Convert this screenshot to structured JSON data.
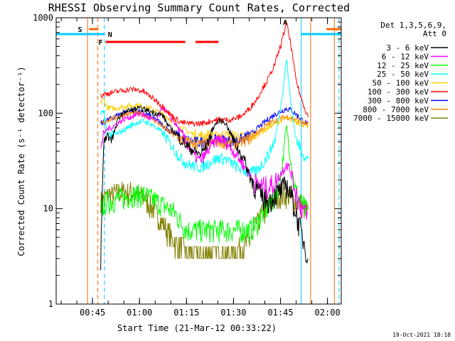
{
  "chart_data": {
    "type": "line",
    "title": "RHESSI Observing Summary Count Rates, Corrected",
    "xlabel": "Start Time (21-Mar-12 00:33:22)",
    "ylabel": "Corrected Count Rate (s⁻¹ detector⁻¹)",
    "yscale": "log",
    "ylim": [
      1,
      1000
    ],
    "xlim_minutes": [
      0,
      91
    ],
    "x_start": "00:33:22",
    "x_ticks": [
      {
        "label": "00:45",
        "t": 11.6
      },
      {
        "label": "01:00",
        "t": 26.6
      },
      {
        "label": "01:15",
        "t": 41.6
      },
      {
        "label": "01:30",
        "t": 56.6
      },
      {
        "label": "01:45",
        "t": 71.6
      },
      {
        "label": "02:00",
        "t": 86.6
      }
    ],
    "y_ticks": [
      {
        "label": "1",
        "v": 1
      },
      {
        "label": "10",
        "v": 10
      },
      {
        "label": "100",
        "v": 100
      },
      {
        "label": "1000",
        "v": 1000
      }
    ],
    "legend_header": [
      "Det 1,3,5,6,9,",
      "Att 0"
    ],
    "series": [
      {
        "name": "3 - 6 keV",
        "color": "#000000",
        "x": [
          14.2,
          15.2,
          16.2,
          18,
          20,
          22,
          24,
          26,
          28,
          30,
          32,
          34,
          36,
          38,
          40,
          42,
          44,
          46,
          48,
          50,
          52,
          54,
          56,
          58,
          60,
          62,
          64,
          66,
          68,
          70,
          72,
          73.5,
          75,
          76.5,
          78,
          79.5,
          80.6
        ],
        "values": [
          3,
          52,
          58,
          55,
          90,
          105,
          108,
          112,
          110,
          104,
          100,
          95,
          72,
          62,
          52,
          45,
          40,
          37,
          45,
          70,
          85,
          80,
          58,
          42,
          33,
          21,
          16,
          13,
          12,
          14,
          16,
          18,
          14,
          9,
          6,
          4,
          3
        ]
      },
      {
        "name": "6 - 12 keV",
        "color": "#ff00ff",
        "x": [
          14.2,
          15.2,
          16.2,
          18,
          20,
          22,
          24,
          26,
          28,
          30,
          32,
          34,
          36,
          38,
          40,
          42,
          44,
          46,
          48,
          50,
          52,
          54,
          56,
          58,
          60,
          62,
          64,
          66,
          68,
          70,
          72,
          73.5,
          75,
          76.5,
          78,
          79.5,
          80.6
        ],
        "values": [
          45,
          60,
          68,
          72,
          80,
          88,
          92,
          98,
          96,
          88,
          82,
          118,
          95,
          78,
          62,
          46,
          36,
          32,
          38,
          48,
          55,
          50,
          42,
          35,
          28,
          22,
          18,
          17,
          17,
          19,
          24,
          30,
          24,
          15,
          11,
          9,
          8
        ]
      },
      {
        "name": "12 - 25 keV",
        "color": "#00ff00",
        "x": [
          14.2,
          15.2,
          16.2,
          18,
          20,
          22,
          24,
          26,
          28,
          30,
          32,
          34,
          36,
          38,
          40,
          42,
          44,
          46,
          48,
          50,
          52,
          54,
          56,
          58,
          60,
          62,
          64,
          66,
          68,
          70,
          72,
          73.5,
          75,
          76.5,
          78,
          79.5,
          80.6
        ],
        "values": [
          10,
          11,
          12,
          12,
          13,
          13,
          14,
          14,
          14,
          13,
          12,
          11,
          10,
          9,
          7,
          6,
          6,
          6,
          6,
          6,
          6,
          6,
          6,
          6,
          6,
          6,
          7,
          9,
          11,
          14,
          25,
          75,
          30,
          15,
          12,
          10,
          9
        ]
      },
      {
        "name": "25 - 50 keV",
        "color": "#00ffff",
        "x": [
          14.2,
          15.2,
          16.2,
          18,
          20,
          22,
          24,
          26,
          28,
          30,
          32,
          34,
          36,
          38,
          40,
          42,
          44,
          46,
          48,
          50,
          52,
          54,
          56,
          58,
          60,
          62,
          64,
          66,
          68,
          70,
          72,
          73.5,
          75,
          76.5,
          78,
          79.5,
          80.6
        ],
        "values": [
          95,
          110,
          62,
          58,
          62,
          68,
          75,
          80,
          82,
          78,
          70,
          62,
          50,
          40,
          33,
          29,
          28,
          27,
          29,
          32,
          34,
          33,
          30,
          27,
          25,
          24,
          25,
          30,
          38,
          55,
          140,
          380,
          120,
          55,
          42,
          35,
          32
        ]
      },
      {
        "name": "50 - 100 keV",
        "color": "#ffcc00",
        "x": [
          14.2,
          15.2,
          16.2,
          18,
          20,
          22,
          24,
          26,
          28,
          30,
          32,
          34,
          36,
          38,
          40,
          42,
          44,
          46,
          48,
          50,
          52,
          54,
          56,
          58,
          60,
          62,
          64,
          66,
          68,
          70,
          72,
          73.5,
          75,
          76.5,
          78,
          79.5,
          80.6
        ],
        "values": [
          130,
          140,
          115,
          112,
          115,
          118,
          120,
          122,
          118,
          112,
          105,
          98,
          88,
          78,
          70,
          64,
          60,
          58,
          59,
          60,
          60,
          59,
          58,
          57,
          56,
          57,
          60,
          65,
          72,
          78,
          85,
          88,
          86,
          82,
          78,
          75,
          72
        ]
      },
      {
        "name": "100 - 300 keV",
        "color": "#ff0000",
        "x": [
          14.2,
          15.2,
          16.2,
          18,
          20,
          22,
          24,
          26,
          28,
          30,
          32,
          34,
          36,
          38,
          40,
          42,
          44,
          46,
          48,
          50,
          52,
          54,
          56,
          58,
          60,
          62,
          64,
          66,
          68,
          70,
          72,
          73.5,
          75,
          76.5,
          78,
          79.5,
          80.6
        ],
        "values": [
          150,
          158,
          160,
          165,
          170,
          175,
          178,
          176,
          168,
          150,
          135,
          118,
          100,
          88,
          80,
          78,
          78,
          78,
          80,
          84,
          86,
          85,
          86,
          90,
          98,
          115,
          140,
          185,
          240,
          340,
          560,
          900,
          500,
          230,
          150,
          110,
          90
        ]
      },
      {
        "name": "300 - 800 keV",
        "color": "#0000ff",
        "x": [
          14.2,
          15.2,
          16.2,
          18,
          20,
          22,
          24,
          26,
          28,
          30,
          32,
          34,
          36,
          38,
          40,
          42,
          44,
          46,
          48,
          50,
          52,
          54,
          56,
          58,
          60,
          62,
          64,
          66,
          68,
          70,
          72,
          73.5,
          75,
          76.5,
          78,
          79.5,
          80.6
        ],
        "values": [
          78,
          80,
          84,
          90,
          97,
          102,
          105,
          104,
          100,
          93,
          85,
          75,
          66,
          60,
          55,
          52,
          50,
          50,
          51,
          52,
          53,
          52,
          51,
          52,
          55,
          60,
          68,
          78,
          88,
          98,
          106,
          112,
          108,
          98,
          88,
          80,
          75
        ]
      },
      {
        "name": "800 - 7000 keV",
        "color": "#ff8800",
        "x": [
          14.2,
          15.2,
          16.2,
          18,
          20,
          22,
          24,
          26,
          28,
          30,
          32,
          34,
          36,
          38,
          40,
          42,
          44,
          46,
          48,
          50,
          52,
          54,
          56,
          58,
          60,
          62,
          64,
          66,
          68,
          70,
          72,
          73.5,
          75,
          76.5,
          78,
          79.5,
          80.6
        ],
        "values": [
          76,
          80,
          84,
          88,
          93,
          98,
          100,
          99,
          96,
          90,
          82,
          72,
          64,
          58,
          53,
          50,
          48,
          47,
          48,
          49,
          50,
          49,
          48,
          49,
          51,
          55,
          62,
          70,
          78,
          85,
          90,
          92,
          90,
          86,
          82,
          78,
          75
        ]
      },
      {
        "name": "7000 - 15000 keV",
        "color": "#808000",
        "x": [
          14.2,
          15.2,
          16.2,
          18,
          20,
          22,
          24,
          26,
          28,
          30,
          32,
          34,
          36,
          38,
          40,
          42,
          44,
          46,
          48,
          50,
          52,
          54,
          56,
          58,
          60,
          62,
          64,
          66,
          68,
          70,
          72,
          73.5,
          75,
          76.5,
          78,
          79.5,
          80.6
        ],
        "values": [
          12,
          13,
          14,
          14,
          15,
          15,
          15,
          14,
          13,
          11,
          9,
          7,
          5.5,
          4.5,
          4,
          3.6,
          3.4,
          3.3,
          3.4,
          3.5,
          3.6,
          3.5,
          3.5,
          3.6,
          4,
          5,
          7,
          9,
          11,
          13,
          14,
          14,
          13,
          12,
          11,
          10,
          9
        ]
      }
    ],
    "flags": [
      {
        "label": "S",
        "color": "#ff6600",
        "segments": [
          [
            10.5,
            13.5
          ],
          [
            86.3,
            91
          ]
        ]
      },
      {
        "label": "N",
        "color": "#00ccff",
        "segments": [
          [
            0,
            15.3
          ],
          [
            78.3,
            91
          ]
        ]
      },
      {
        "label": "F",
        "color": "#ff0000",
        "segments": [
          [
            15.8,
            41.2
          ],
          [
            44.5,
            51.8
          ]
        ]
      },
      {
        "label": "A",
        "color": "#ff6600",
        "segments": [
          [
            72.8,
            73.6
          ]
        ]
      }
    ],
    "vlines": [
      {
        "t": 10.0,
        "color": "#ff6600",
        "style": "solid"
      },
      {
        "t": 13.3,
        "color": "#ff6600",
        "style": "dashed"
      },
      {
        "t": 15.4,
        "color": "#00ccff",
        "style": "dashed"
      },
      {
        "t": 78.2,
        "color": "#00ccff",
        "style": "solid"
      },
      {
        "t": 81.2,
        "color": "#ff6600",
        "style": "solid"
      },
      {
        "t": 88.8,
        "color": "#ff6600",
        "style": "solid"
      },
      {
        "t": 90.3,
        "color": "#00ccff",
        "style": "dashed"
      }
    ],
    "footer": "19-Oct-2021 18:18"
  }
}
